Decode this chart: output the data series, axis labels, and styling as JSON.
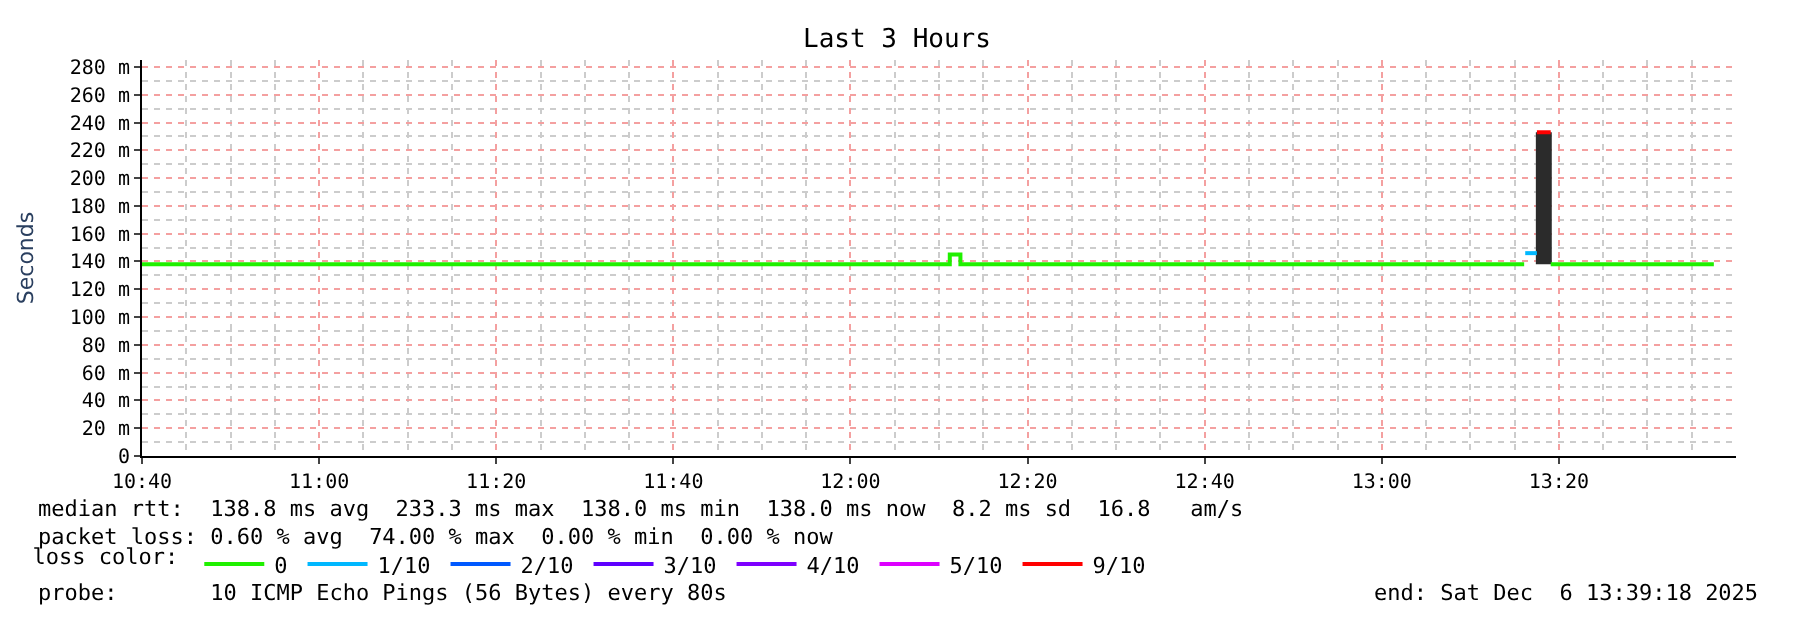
{
  "chart_data": {
    "type": "step",
    "title": "Last 3 Hours",
    "ylabel": "Seconds",
    "legend_title": "loss color:",
    "xlim": [
      10.6667,
      13.6667
    ],
    "xticks": [
      {
        "value": 10.6667,
        "label": "10:40"
      },
      {
        "value": 11,
        "label": "11:00"
      },
      {
        "value": 11.3333,
        "label": "11:20"
      },
      {
        "value": 11.6667,
        "label": "11:40"
      },
      {
        "value": 12,
        "label": "12:00"
      },
      {
        "value": 12.3333,
        "label": "12:20"
      },
      {
        "value": 12.6667,
        "label": "12:40"
      },
      {
        "value": 13,
        "label": "13:00"
      },
      {
        "value": 13.3333,
        "label": "13:20"
      }
    ],
    "ylim": [
      0,
      285
    ],
    "yticks": [
      0,
      {
        "value": 20,
        "label": "20 m"
      },
      {
        "value": 40,
        "label": "40 m"
      },
      {
        "value": 60,
        "label": "60 m"
      },
      {
        "value": 80,
        "label": "80 m"
      },
      {
        "value": 100,
        "label": "100 m"
      },
      {
        "value": 120,
        "label": "120 m"
      },
      {
        "value": 140,
        "label": "140 m"
      },
      {
        "value": 160,
        "label": "160 m"
      },
      {
        "value": 180,
        "label": "180 m"
      },
      {
        "value": 200,
        "label": "200 m"
      },
      {
        "value": 220,
        "label": "220 m"
      },
      {
        "value": 240,
        "label": "240 m"
      },
      {
        "value": 260,
        "label": "260 m"
      },
      {
        "value": 280,
        "label": "280 m"
      }
    ],
    "series": [
      {
        "type": "bar",
        "color": "#2b2b2b",
        "x": [
          13.305
        ],
        "base": [
          138
        ],
        "values": [
          95
        ]
      },
      {
        "name": "0",
        "color": "#20f000",
        "x": [
          10.6667,
          12.187,
          12.207,
          13.268,
          13.27,
          13.318,
          13.625
        ],
        "values": [
          138,
          145,
          138,
          138,
          null,
          138,
          138
        ]
      },
      {
        "name": "1/10",
        "color": "#00b8ff",
        "x": [
          13.27,
          13.292
        ],
        "values": [
          146,
          146
        ]
      },
      {
        "name": "2/10",
        "color": "#0059ff"
      },
      {
        "name": "3/10",
        "color": "#5e00ff"
      },
      {
        "name": "4/10",
        "color": "#7e00ff"
      },
      {
        "name": "5/10",
        "color": "#dd00ff"
      },
      {
        "name": "9/10",
        "color": "#ff0000",
        "x": [
          13.292,
          13.318
        ],
        "values": [
          233,
          233
        ]
      }
    ],
    "grid": true,
    "legend": "bottom",
    "line_style": "solid",
    "marker": "none",
    "annotations": [
      "median rtt:  138.8 ms avg  233.3 ms max  138.0 ms min  138.0 ms now  8.2 ms sd  16.8   am/s",
      "packet loss: 0.60 % avg  74.00 % max  0.00 % min  0.00 % now",
      "probe:       10 ICMP Echo Pings (56 Bytes) every 80s",
      "end: Sat Dec  6 13:39:18 2025"
    ]
  }
}
